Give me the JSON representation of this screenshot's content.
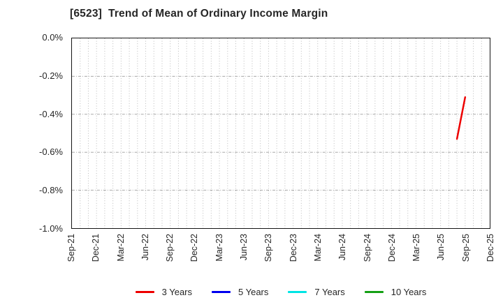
{
  "title": {
    "text": "[6523]  Trend of Mean of Ordinary Income Margin"
  },
  "chart_data": {
    "type": "line",
    "title": "[6523]  Trend of Mean of Ordinary Income Margin",
    "x_axis": {
      "tick_labels": [
        "Sep-21",
        "Dec-21",
        "Mar-22",
        "Jun-22",
        "Sep-22",
        "Dec-22",
        "Mar-23",
        "Jun-23",
        "Sep-23",
        "Dec-23",
        "Mar-24",
        "Jun-24",
        "Sep-24",
        "Dec-24",
        "Mar-25",
        "Jun-25",
        "Sep-25",
        "Dec-25"
      ],
      "months_total": 51,
      "tick_every_months": 3,
      "minor_grid": "monthly dotted vertical lines"
    },
    "y_axis": {
      "unit": "%",
      "max": 0.0,
      "min": -1.0,
      "tick_labels": [
        "0.0%",
        "-0.2%",
        "-0.4%",
        "-0.6%",
        "-0.8%",
        "-1.0%"
      ],
      "tick_values": [
        0.0,
        -0.2,
        -0.4,
        -0.6,
        -0.8,
        -1.0
      ]
    },
    "grid": true,
    "legend_position": "bottom",
    "series": [
      {
        "name": "3 Years",
        "color": "#ee0000",
        "points": [
          {
            "date": "Aug-25",
            "month_index": 47,
            "value": -0.53
          },
          {
            "date": "Sep-25",
            "month_index": 48,
            "value": -0.31
          }
        ]
      },
      {
        "name": "5 Years",
        "color": "#0000ee",
        "points": []
      },
      {
        "name": "7 Years",
        "color": "#00e5e5",
        "points": []
      },
      {
        "name": "10 Years",
        "color": "#14a014",
        "points": []
      }
    ]
  }
}
